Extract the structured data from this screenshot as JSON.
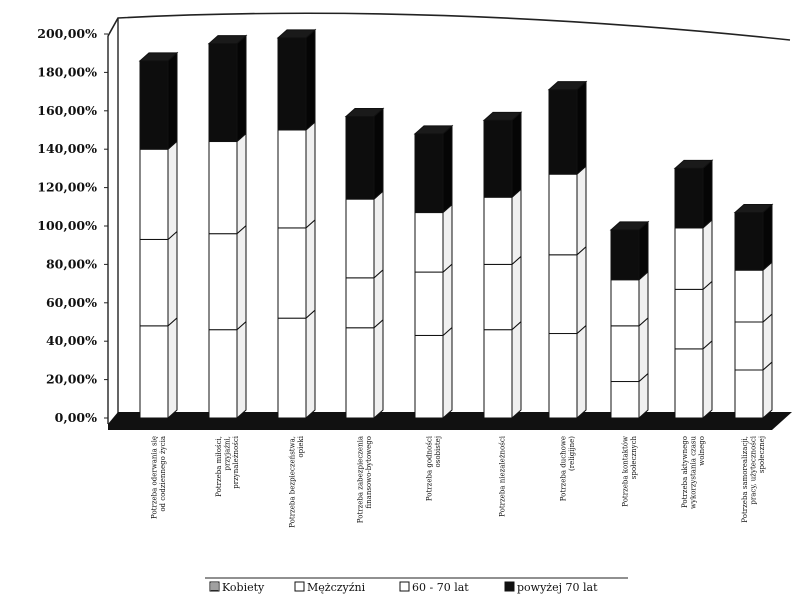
{
  "chart_data": {
    "type": "bar",
    "stacked": true,
    "three_d": true,
    "title": "",
    "xlabel": "",
    "ylabel": "",
    "ylim": [
      0,
      200
    ],
    "y_ticks": [
      "0,00%",
      "20,00%",
      "40,00%",
      "60,00%",
      "80,00%",
      "100,00%",
      "120,00%",
      "140,00%",
      "160,00%",
      "180,00%",
      "200,00%"
    ],
    "categories": [
      "Potrzeba oderwania się od codziennego życia",
      "Potrzeba miłości, przyjaźni, przynależności",
      "Potrzeba bezpieczeństwa, opieki",
      "Potrzeba zabezpieczenia finansowo-bytowego",
      "Potrzeba godności osobistej",
      "Potrzeba niezależności",
      "Potrzeba duchowe (religijne)",
      "Potrzeba kontaktów społecznych",
      "Potrzeba aktywnego wykorzystania czasu wolnego",
      "Potrzeba samorealizacji, pracy, użyteczności społecznej"
    ],
    "series": [
      {
        "name": "Kobiety",
        "values": [
          48,
          46,
          52,
          47,
          43,
          46,
          44,
          19,
          36,
          25
        ]
      },
      {
        "name": "Mężczyźni",
        "values": [
          45,
          50,
          47,
          26,
          33,
          34,
          41,
          29,
          31,
          25
        ]
      },
      {
        "name": "60 - 70 lat",
        "values": [
          47,
          48,
          51,
          41,
          31,
          35,
          42,
          24,
          32,
          27
        ]
      },
      {
        "name": "powyżej 70 lat",
        "values": [
          46,
          51,
          48,
          43,
          41,
          40,
          44,
          26,
          31,
          30
        ]
      }
    ],
    "legend_position": "bottom",
    "grid": false
  },
  "legend": [
    {
      "label": "Kobiety"
    },
    {
      "label": "Mężczyźni"
    },
    {
      "label": "60 - 70 lat"
    },
    {
      "label": "powyżej 70 lat"
    }
  ],
  "colors": {
    "series": [
      "#ffffff",
      "#ffffff",
      "#ffffff",
      "#0d0d0d"
    ],
    "floor": "#111111",
    "outline": "#111111"
  }
}
